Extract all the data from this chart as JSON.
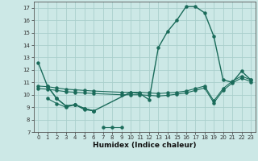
{
  "xlabel": "Humidex (Indice chaleur)",
  "background_color": "#cce8e6",
  "grid_color": "#aacfcc",
  "line_color": "#1a6b5a",
  "xlim": [
    -0.5,
    23.5
  ],
  "ylim": [
    7,
    17.5
  ],
  "yticks": [
    7,
    8,
    9,
    10,
    11,
    12,
    13,
    14,
    15,
    16,
    17
  ],
  "xticks": [
    0,
    1,
    2,
    3,
    4,
    5,
    6,
    7,
    8,
    9,
    10,
    11,
    12,
    13,
    14,
    15,
    16,
    17,
    18,
    19,
    20,
    21,
    22,
    23
  ],
  "lines": [
    {
      "x": [
        0,
        1,
        2,
        3,
        4,
        5,
        6,
        10,
        11,
        12,
        13,
        14,
        15,
        16,
        17,
        18,
        19,
        20,
        21,
        22,
        23
      ],
      "y": [
        12.6,
        10.7,
        9.7,
        9.1,
        9.2,
        8.9,
        8.7,
        10.2,
        10.1,
        9.6,
        13.8,
        15.1,
        16.0,
        17.1,
        17.1,
        16.6,
        14.7,
        11.2,
        11.0,
        11.9,
        11.2
      ]
    },
    {
      "x": [
        0,
        1,
        2,
        3,
        4,
        5,
        6,
        9,
        10,
        11,
        12,
        13,
        14,
        15,
        16,
        17,
        18,
        19,
        20,
        21,
        22,
        23
      ],
      "y": [
        10.7,
        10.65,
        10.55,
        10.45,
        10.4,
        10.35,
        10.3,
        10.2,
        10.2,
        10.2,
        10.15,
        10.1,
        10.15,
        10.2,
        10.3,
        10.5,
        10.7,
        9.5,
        10.5,
        11.1,
        11.5,
        11.2
      ]
    },
    {
      "x": [
        0,
        1,
        2,
        3,
        4,
        5,
        6,
        9,
        10,
        11,
        12,
        13,
        14,
        15,
        16,
        17,
        18,
        19,
        20,
        21,
        22,
        23
      ],
      "y": [
        10.5,
        10.45,
        10.35,
        10.25,
        10.2,
        10.15,
        10.1,
        10.0,
        10.0,
        10.0,
        9.95,
        9.9,
        9.95,
        10.05,
        10.15,
        10.35,
        10.55,
        9.35,
        10.35,
        10.95,
        11.35,
        11.05
      ]
    },
    {
      "x": [
        1,
        2,
        3,
        4,
        5,
        6
      ],
      "y": [
        10.7,
        9.7,
        9.1,
        9.2,
        8.9,
        8.7
      ]
    },
    {
      "x": [
        7,
        8,
        9
      ],
      "y": [
        7.4,
        7.4,
        7.4
      ]
    },
    {
      "x": [
        1,
        2,
        3,
        4,
        5,
        6
      ],
      "y": [
        9.7,
        9.3,
        9.0,
        9.2,
        8.8,
        8.7
      ]
    }
  ]
}
